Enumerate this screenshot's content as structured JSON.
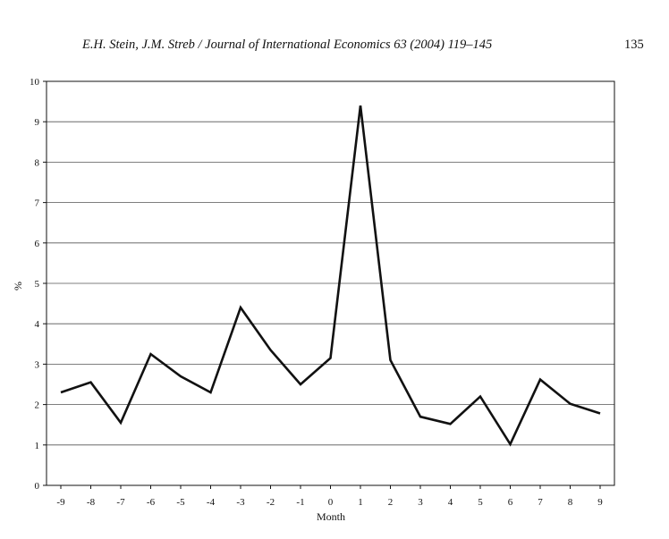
{
  "header": {
    "title": "E.H. Stein, J.M. Streb / Journal of International Economics 63 (2004) 119–145",
    "page_number": "135"
  },
  "chart_data": {
    "type": "line",
    "title": "",
    "xlabel": "Month",
    "ylabel": "%",
    "x": [
      -9,
      -8,
      -7,
      -6,
      -5,
      -4,
      -3,
      -2,
      -1,
      0,
      1,
      2,
      3,
      4,
      5,
      6,
      7,
      8,
      9
    ],
    "series": [
      {
        "values": [
          2.3,
          2.55,
          1.55,
          3.25,
          2.7,
          2.3,
          4.4,
          3.35,
          2.5,
          3.15,
          9.4,
          3.1,
          1.7,
          1.52,
          2.2,
          1.02,
          2.62,
          2.02,
          1.78
        ]
      }
    ],
    "ylim": [
      0,
      10
    ],
    "yticks": [
      "0",
      "1",
      "2",
      "3",
      "4",
      "5",
      "6",
      "7",
      "8",
      "9",
      "10"
    ],
    "xticks": [
      "-9",
      "-8",
      "-7",
      "-6",
      "-5",
      "-4",
      "-3",
      "-2",
      "-1",
      "0",
      "1",
      "2",
      "3",
      "4",
      "5",
      "6",
      "7",
      "8",
      "9"
    ],
    "grid": true,
    "line_color": "#111111"
  }
}
